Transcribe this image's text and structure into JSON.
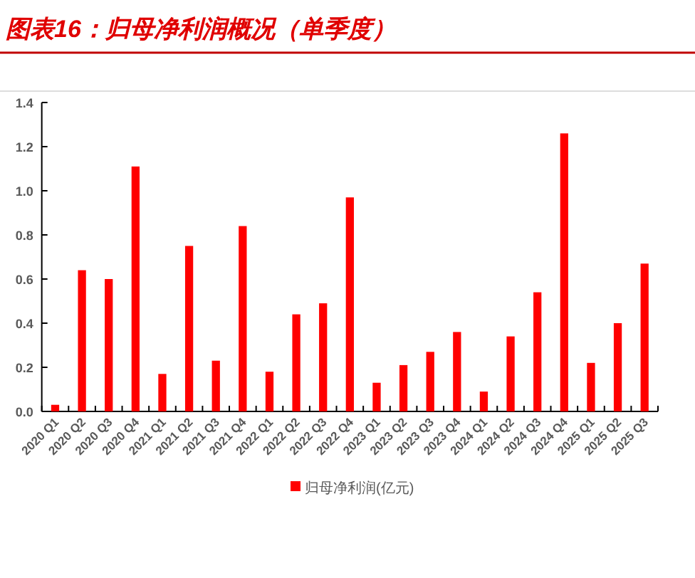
{
  "chart_data": {
    "type": "bar",
    "title": "图表16：归母净利润概况（单季度）",
    "categories": [
      "2020 Q1",
      "2020 Q2",
      "2020 Q3",
      "2020 Q4",
      "2021 Q1",
      "2021 Q2",
      "2021 Q3",
      "2021 Q4",
      "2022 Q1",
      "2022 Q2",
      "2022 Q3",
      "2022 Q4",
      "2023 Q1",
      "2023 Q2",
      "2023 Q3",
      "2023 Q4",
      "2024 Q1",
      "2024 Q2",
      "2024 Q3",
      "2024 Q4",
      "2025 Q1",
      "2025 Q2",
      "2025 Q3"
    ],
    "series": [
      {
        "name": "归母净利润(亿元)",
        "color": "#ff0000",
        "values": [
          0.03,
          0.64,
          0.6,
          1.11,
          0.17,
          0.75,
          0.23,
          0.84,
          0.18,
          0.44,
          0.49,
          0.97,
          0.13,
          0.21,
          0.27,
          0.36,
          0.09,
          0.34,
          0.54,
          1.26,
          0.22,
          0.4,
          0.67
        ]
      }
    ],
    "ylim": [
      0,
      1.4
    ],
    "yticks": [
      {
        "value": 0,
        "label": "0.0"
      },
      0.2,
      0.4,
      0.6,
      0.8,
      {
        "value": 1,
        "label": "1.0"
      },
      1.2,
      1.4
    ],
    "legend": "bottom",
    "grid": false
  }
}
